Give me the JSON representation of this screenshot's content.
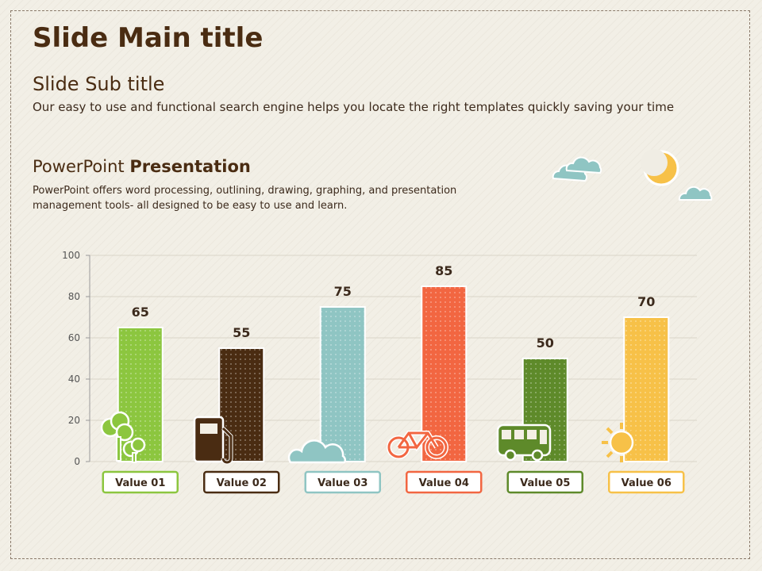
{
  "slide": {
    "title": "Slide Main title",
    "subtitle": "Slide Sub title",
    "description": "Our easy to use and functional search engine helps you locate the right templates quickly saving your time",
    "section_title_regular": "PowerPoint ",
    "section_title_bold": "Presentation",
    "section_text": "PowerPoint offers word processing, outlining, drawing, graphing, and presentation management tools- all designed to be easy to use and learn."
  },
  "chart_data": {
    "type": "bar",
    "categories": [
      "Value 01",
      "Value 02",
      "Value 03",
      "Value 04",
      "Value 05",
      "Value 06"
    ],
    "values": [
      65,
      55,
      75,
      85,
      50,
      70
    ],
    "ylim": [
      0,
      100
    ],
    "yticks": [
      0,
      20,
      40,
      60,
      80,
      100
    ],
    "grid": true,
    "colors": [
      "#8cc63f",
      "#4a2c12",
      "#8fc5c3",
      "#f26641",
      "#5e8a2a",
      "#f7c148"
    ],
    "icons": [
      "tree-icon",
      "fuel-pump-icon",
      "cloud-icon",
      "bicycle-icon",
      "bus-icon",
      "sun-icon"
    ]
  },
  "decor": {
    "icons": [
      "cloud-icon",
      "moon-icon",
      "cloud-icon"
    ],
    "colors": {
      "cloud": "#8fc5c3",
      "moon": "#f7c148"
    }
  }
}
